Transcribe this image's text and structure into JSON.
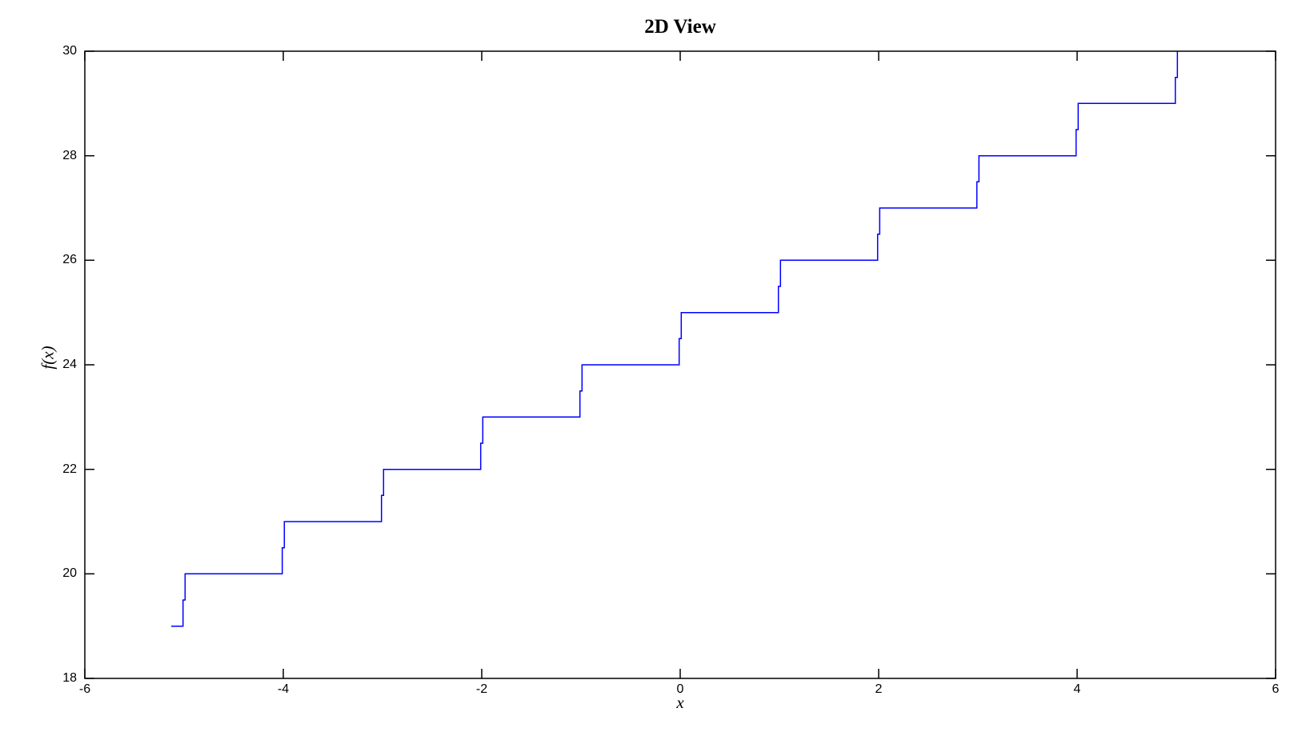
{
  "chart_data": {
    "type": "line",
    "subtype": "staircase-step",
    "title": "2D View",
    "xlabel": "x",
    "ylabel": "f(x)",
    "xlim": [
      -6,
      6
    ],
    "ylim": [
      18,
      30
    ],
    "xticks": [
      -6,
      -4,
      -2,
      0,
      2,
      4,
      6
    ],
    "yticks": [
      18,
      20,
      22,
      24,
      26,
      28,
      30
    ],
    "grid": false,
    "legend": null,
    "line_color": "#0000ff",
    "axis_color": "#000000",
    "background_color": "#ffffff",
    "steps": [
      {
        "x_start": -5.13,
        "x_end": -5,
        "y": 19
      },
      {
        "x_start": -5,
        "x_end": -4,
        "y": 20
      },
      {
        "x_start": -4,
        "x_end": -3,
        "y": 21
      },
      {
        "x_start": -3,
        "x_end": -2,
        "y": 22
      },
      {
        "x_start": -2,
        "x_end": -1,
        "y": 23
      },
      {
        "x_start": -1,
        "x_end": 0,
        "y": 24
      },
      {
        "x_start": 0,
        "x_end": 1,
        "y": 25
      },
      {
        "x_start": 1,
        "x_end": 2,
        "y": 26
      },
      {
        "x_start": 2,
        "x_end": 3,
        "y": 27
      },
      {
        "x_start": 3,
        "x_end": 4,
        "y": 28
      },
      {
        "x_start": 4,
        "x_end": 5,
        "y": 29
      }
    ],
    "final_rise": {
      "x": 5,
      "to_y": 30
    }
  }
}
